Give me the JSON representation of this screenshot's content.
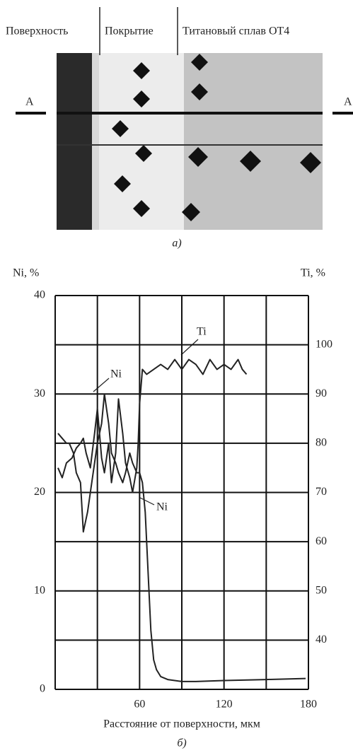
{
  "micrograph": {
    "labels": [
      "Поверхность",
      "Покрытие",
      "Титановый сплав ОТ4"
    ],
    "marker_left": "А",
    "marker_right": "А",
    "caption": "а)"
  },
  "chart_data": {
    "type": "line",
    "y_label": "Ni, %",
    "y2_label": "Ti, %",
    "x_label": "Расстояние от поверхности, мкм",
    "caption": "б)",
    "xlim": [
      0,
      180
    ],
    "xticks": [
      60,
      120,
      180
    ],
    "xgrid": [
      0,
      30,
      60,
      90,
      120,
      150,
      180
    ],
    "ylim": [
      0,
      40
    ],
    "yticks": [
      0,
      10,
      20,
      30,
      40
    ],
    "ygrid": [
      0,
      5,
      10,
      15,
      20,
      25,
      30,
      35,
      40
    ],
    "y2lim": [
      30,
      110
    ],
    "y2ticks": [
      40,
      50,
      60,
      70,
      80,
      90,
      100
    ],
    "grid": true,
    "series": [
      {
        "name": "Ni",
        "color": "#222",
        "axis": "y",
        "x": [
          2,
          5,
          8,
          10,
          13,
          15,
          18,
          20,
          23,
          25,
          28,
          30,
          33,
          35,
          38,
          40,
          43,
          45,
          48,
          50,
          53,
          55,
          58,
          60,
          62,
          64,
          66,
          68,
          70,
          72,
          75,
          80,
          90,
          100,
          120,
          150,
          178
        ],
        "values": [
          26,
          25.5,
          25,
          25,
          24,
          22,
          21,
          16,
          18,
          20,
          23,
          25,
          27,
          30,
          27,
          24,
          23,
          22,
          21,
          22,
          24,
          23,
          22,
          22,
          21,
          18,
          12,
          6,
          3,
          2,
          1.3,
          1,
          0.8,
          0.8,
          0.9,
          1,
          1.1
        ]
      },
      {
        "name": "Ti",
        "color": "#222",
        "axis": "y2",
        "x": [
          2,
          5,
          8,
          12,
          15,
          18,
          20,
          22,
          25,
          28,
          30,
          33,
          35,
          38,
          40,
          43,
          45,
          48,
          50,
          53,
          55,
          58,
          59,
          60,
          62,
          65,
          70,
          75,
          80,
          85,
          90,
          95,
          100,
          105,
          110,
          115,
          120,
          125,
          130,
          133,
          136
        ],
        "values": [
          75,
          73,
          76,
          77,
          79,
          80,
          81,
          78,
          75,
          82,
          87,
          77,
          74,
          80,
          72,
          78,
          89,
          82,
          76,
          73,
          70,
          75,
          80,
          88,
          95,
          94,
          95,
          96,
          95,
          97,
          95,
          97,
          96,
          94,
          97,
          95,
          96,
          95,
          97,
          95,
          94
        ]
      }
    ],
    "annotations": [
      "Ti",
      "Ni",
      "Ni"
    ]
  }
}
